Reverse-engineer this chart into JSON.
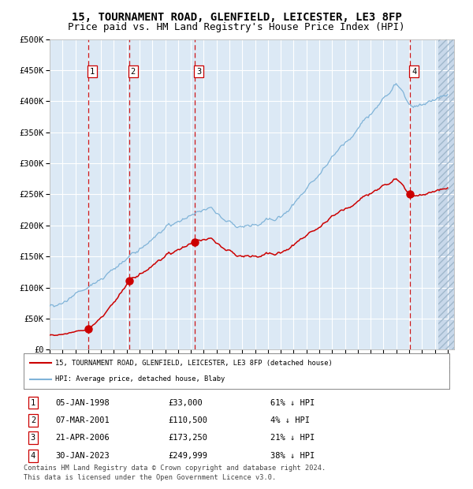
{
  "title": "15, TOURNAMENT ROAD, GLENFIELD, LEICESTER, LE3 8FP",
  "subtitle": "Price paid vs. HM Land Registry's House Price Index (HPI)",
  "xmin": 1995.0,
  "xmax": 2026.5,
  "ymin": 0,
  "ymax": 500000,
  "yticks": [
    0,
    50000,
    100000,
    150000,
    200000,
    250000,
    300000,
    350000,
    400000,
    450000,
    500000
  ],
  "ytick_labels": [
    "£0",
    "£50K",
    "£100K",
    "£150K",
    "£200K",
    "£250K",
    "£300K",
    "£350K",
    "£400K",
    "£450K",
    "£500K"
  ],
  "background_color": "#dce9f5",
  "hpi_color": "#7fb3d8",
  "price_color": "#cc0000",
  "vline_color": "#cc0000",
  "sale_points": [
    {
      "label": "1",
      "date_x": 1998.01,
      "price": 33000
    },
    {
      "label": "2",
      "date_x": 2001.18,
      "price": 110500
    },
    {
      "label": "3",
      "date_x": 2006.3,
      "price": 173250
    },
    {
      "label": "4",
      "date_x": 2023.08,
      "price": 249999
    }
  ],
  "legend_house_label": "15, TOURNAMENT ROAD, GLENFIELD, LEICESTER, LE3 8FP (detached house)",
  "legend_hpi_label": "HPI: Average price, detached house, Blaby",
  "table_rows": [
    {
      "num": "1",
      "date": "05-JAN-1998",
      "price": "£33,000",
      "note": "61% ↓ HPI"
    },
    {
      "num": "2",
      "date": "07-MAR-2001",
      "price": "£110,500",
      "note": "4% ↓ HPI"
    },
    {
      "num": "3",
      "date": "21-APR-2006",
      "price": "£173,250",
      "note": "21% ↓ HPI"
    },
    {
      "num": "4",
      "date": "30-JAN-2023",
      "price": "£249,999",
      "note": "38% ↓ HPI"
    }
  ],
  "footnote1": "Contains HM Land Registry data © Crown copyright and database right 2024.",
  "footnote2": "This data is licensed under the Open Government Licence v3.0."
}
